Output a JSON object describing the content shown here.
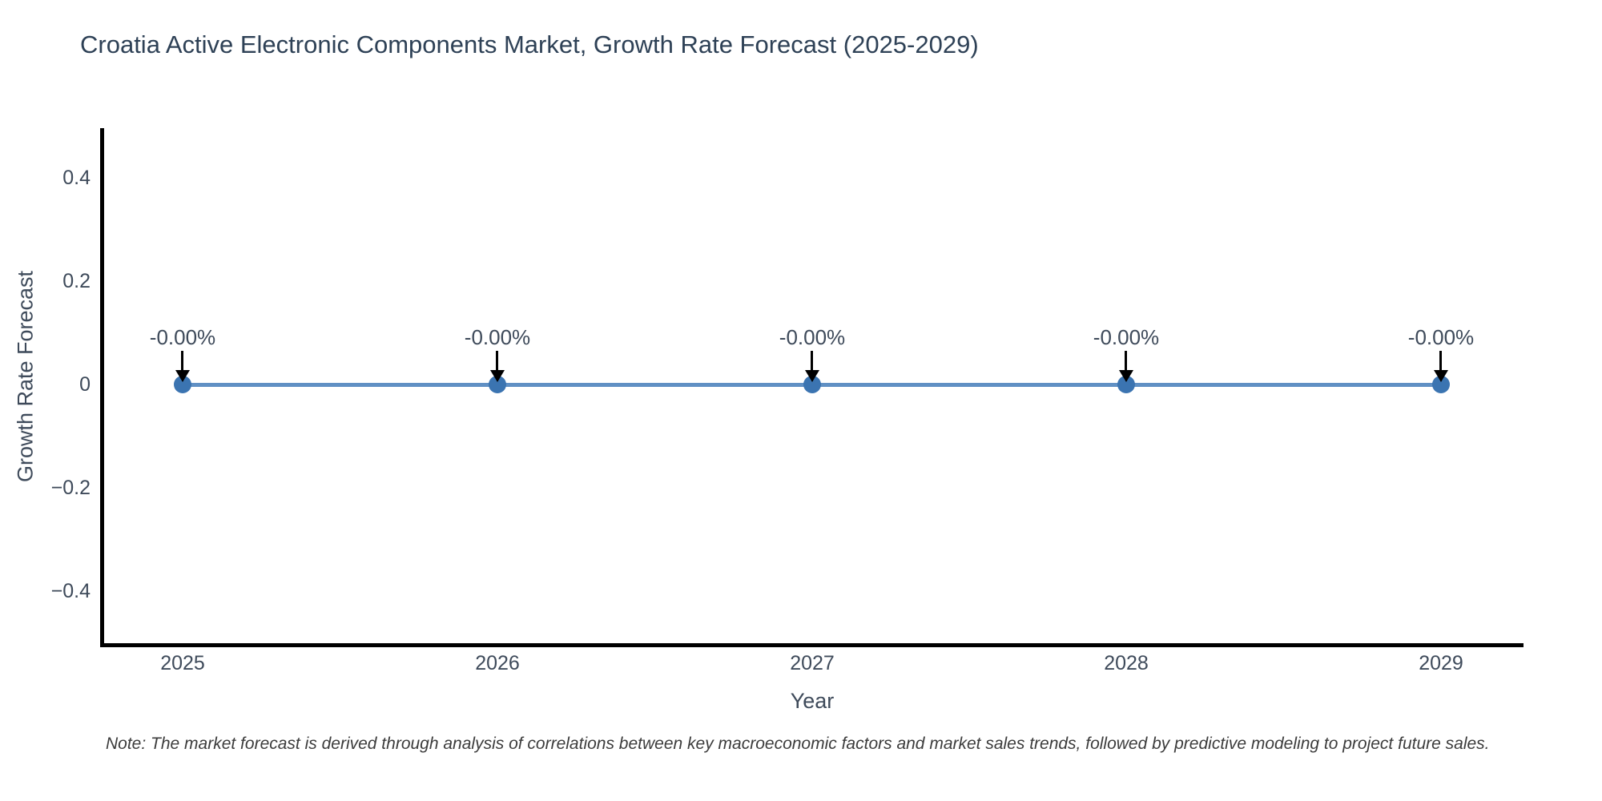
{
  "chart_data": {
    "type": "line",
    "title": "Croatia Active Electronic Components Market, Growth Rate Forecast (2025-2029)",
    "xlabel": "Year",
    "ylabel": "Growth Rate Forecast",
    "categories": [
      "2025",
      "2026",
      "2027",
      "2028",
      "2029"
    ],
    "series": [
      {
        "name": "Growth Rate Forecast",
        "values": [
          0,
          0,
          0,
          0,
          0
        ]
      }
    ],
    "point_labels": [
      "-0.00%",
      "-0.00%",
      "-0.00%",
      "-0.00%",
      "-0.00%"
    ],
    "yticks": [
      {
        "value": 0.4,
        "label": "0.4"
      },
      {
        "value": 0.2,
        "label": "0.2"
      },
      {
        "value": 0,
        "label": "0"
      },
      {
        "value": -0.2,
        "label": "−0.2"
      },
      {
        "value": -0.4,
        "label": "−0.4"
      }
    ],
    "ylim": [
      -0.5,
      0.5
    ],
    "grid": false,
    "legend_position": "none"
  },
  "note": "Note: The market forecast is derived through analysis of correlations between key macroeconomic factors and market sales trends, followed by predictive modeling to project future sales.",
  "colors": {
    "bg": "#ffffff",
    "title": "#2e4156",
    "tick": "#3e4a5a",
    "axis_title": "#3e4a5a",
    "axis_line": "#000000",
    "series_line": "#6090c4",
    "marker": "#3b74b1",
    "arrow": "#000000",
    "note": "#3c3c3c"
  }
}
